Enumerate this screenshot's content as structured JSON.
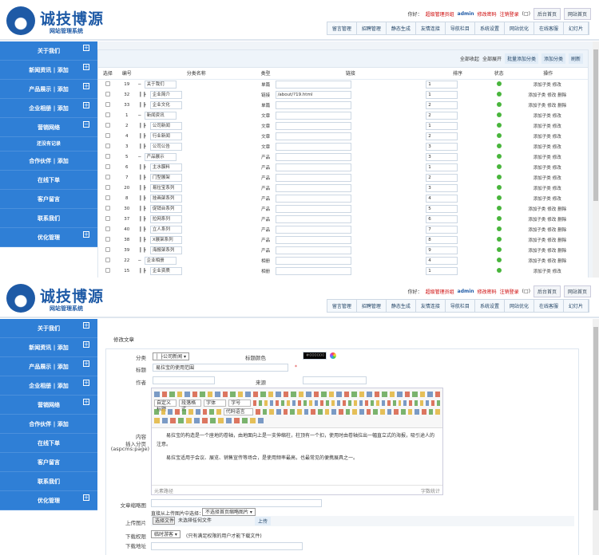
{
  "header": {
    "logo_title": "诚技博源",
    "logo_subtitle": "网站管理系统",
    "greeting": "你好：",
    "role": "超级管理员组",
    "user": "admin",
    "change_password": "修改密码",
    "logout": "注销登录",
    "bracket": "(□)",
    "admin_home": "后台首页",
    "site_home": "网站首页",
    "nav": [
      "留言管理",
      "招聘管理",
      "静态生成",
      "友情连接",
      "导航栏目",
      "系统设置",
      "网站优化",
      "在线客服",
      "幻灯片"
    ]
  },
  "sidebar_top": [
    {
      "label": "关于我们",
      "plus": "+"
    },
    {
      "label": "新闻资讯 |  添加",
      "plus": "+"
    },
    {
      "label": "产品展示 |  添加",
      "plus": "+"
    },
    {
      "label": "企业相册 |  添加",
      "plus": "+"
    },
    {
      "label": "营销网络",
      "plus": "−"
    },
    {
      "label": "还没有记录",
      "sub": true
    },
    {
      "label": "合作伙伴 |  添加"
    },
    {
      "label": "在线下单"
    },
    {
      "label": "客户留言"
    },
    {
      "label": "联系我们"
    },
    {
      "label": "优化管理",
      "plus": "+"
    }
  ],
  "sidebar_bottom": [
    {
      "label": "关于我们",
      "plus": "+"
    },
    {
      "label": "新闻资讯 |  添加",
      "plus": "+"
    },
    {
      "label": "产品展示 |  添加",
      "plus": "+"
    },
    {
      "label": "企业相册 |  添加",
      "plus": "+"
    },
    {
      "label": "营销网络",
      "plus": "+"
    },
    {
      "label": "合作伙伴 |  添加"
    },
    {
      "label": "在线下单"
    },
    {
      "label": "客户留言"
    },
    {
      "label": "联系我们"
    },
    {
      "label": "优化管理",
      "plus": "+"
    }
  ],
  "category_list": {
    "toolbar": {
      "collapse_all": "全部收起",
      "expand_all": "全部展开",
      "batch_add": "批量添加分类",
      "add": "添加分类",
      "refresh": "刷新"
    },
    "columns": [
      "选择",
      "编号",
      "分类名称",
      "类型",
      "链接",
      "排序",
      "状态",
      "操作"
    ],
    "rows": [
      {
        "id": "19",
        "level": 0,
        "name": "关于我们",
        "type": "单篇",
        "link": "",
        "sort": "1",
        "actions": [
          "添加子类",
          "修改"
        ]
      },
      {
        "id": "32",
        "level": 1,
        "name": "企业简介",
        "type": "链接",
        "link": "/about/?19.html",
        "sort": "1",
        "actions": [
          "添加子类",
          "修改",
          "删除"
        ]
      },
      {
        "id": "33",
        "level": 1,
        "name": "企业文化",
        "type": "单篇",
        "link": "",
        "sort": "2",
        "actions": [
          "添加子类",
          "修改",
          "删除"
        ]
      },
      {
        "id": "1",
        "level": 0,
        "name": "新闻资讯",
        "type": "文章",
        "link": "",
        "sort": "2",
        "actions": [
          "添加子类",
          "修改"
        ]
      },
      {
        "id": "2",
        "level": 1,
        "name": "公司新闻",
        "type": "文章",
        "link": "",
        "sort": "1",
        "actions": [
          "添加子类",
          "修改"
        ]
      },
      {
        "id": "4",
        "level": 1,
        "name": "行业新闻",
        "type": "文章",
        "link": "",
        "sort": "2",
        "actions": [
          "添加子类",
          "修改"
        ]
      },
      {
        "id": "3",
        "level": 1,
        "name": "公司公告",
        "type": "文章",
        "link": "",
        "sort": "3",
        "actions": [
          "添加子类",
          "修改"
        ]
      },
      {
        "id": "5",
        "level": 0,
        "name": "产品展示",
        "type": "产品",
        "link": "",
        "sort": "3",
        "actions": [
          "添加子类",
          "修改"
        ]
      },
      {
        "id": "6",
        "level": 1,
        "name": "主水膜料",
        "type": "产品",
        "link": "",
        "sort": "1",
        "actions": [
          "添加子类",
          "修改"
        ]
      },
      {
        "id": "7",
        "level": 1,
        "name": "门型展架",
        "type": "产品",
        "link": "",
        "sort": "2",
        "actions": [
          "添加子类",
          "修改"
        ]
      },
      {
        "id": "20",
        "level": 1,
        "name": "易拉宝系列",
        "type": "产品",
        "link": "",
        "sort": "3",
        "actions": [
          "添加子类",
          "修改"
        ]
      },
      {
        "id": "8",
        "level": 1,
        "name": "挂画架系列",
        "type": "产品",
        "link": "",
        "sort": "4",
        "actions": [
          "添加子类",
          "修改"
        ]
      },
      {
        "id": "30",
        "level": 1,
        "name": "促销台系列",
        "type": "产品",
        "link": "",
        "sort": "5",
        "actions": [
          "添加子类",
          "修改",
          "删除"
        ]
      },
      {
        "id": "37",
        "level": 1,
        "name": "拉网系列",
        "type": "产品",
        "link": "",
        "sort": "6",
        "actions": [
          "添加子类",
          "修改",
          "删除"
        ]
      },
      {
        "id": "40",
        "level": 1,
        "name": "立人系列",
        "type": "产品",
        "link": "",
        "sort": "7",
        "actions": [
          "添加子类",
          "修改",
          "删除"
        ]
      },
      {
        "id": "38",
        "level": 1,
        "name": "X展架系列",
        "type": "产品",
        "link": "",
        "sort": "8",
        "actions": [
          "添加子类",
          "修改",
          "删除"
        ]
      },
      {
        "id": "39",
        "level": 1,
        "name": "海报架系列",
        "type": "产品",
        "link": "",
        "sort": "9",
        "actions": [
          "添加子类",
          "修改",
          "删除"
        ]
      },
      {
        "id": "22",
        "level": 0,
        "name": "企业相册",
        "type": "相册",
        "link": "",
        "sort": "4",
        "actions": [
          "添加子类",
          "修改",
          "删除"
        ]
      },
      {
        "id": "15",
        "level": 1,
        "name": "企业资质",
        "type": "相册",
        "link": "",
        "sort": "1",
        "actions": [
          "添加子类",
          "修改"
        ]
      }
    ],
    "status_color": "#49b53c"
  },
  "edit_article": {
    "title": "修改文章",
    "category_label": "分类",
    "category_value": "│ ├公司新闻 ▾",
    "title_color_label": "标题颜色",
    "title_color_value": "#000000",
    "title_label": "标题",
    "title_value": "易拉宝的使用范围",
    "required_mark": "*",
    "author_label": "作者",
    "author_value": "",
    "source_label": "来源",
    "source_value": "",
    "content_label": "内容",
    "page_break_label": "插入分页",
    "page_break_tag": "(aspcms:page)",
    "editor_selects": [
      "自定义标题",
      "段落格式",
      "字体",
      "字号",
      "代码语言"
    ],
    "content_paragraphs": [
      "易拉宝的构造是一个座地的卷轴，由地面向上是一支伸缩柱，柱顶有一个扣，使用时由卷轴拉出一幅直立式的海报，吸引途人的注意。",
      "易拉宝适用于会议、展览、销售宣传等场合，是使用频率最高，也最常见的便携展具之一。"
    ],
    "element_path": "元素路径",
    "word_count": "字数统计",
    "thumb_label": "文章缩略图",
    "thumb_value": "",
    "choose_from_uploaded": "直接从上传图片中选择：",
    "choose_select": "不选择首页缩略图片 ▾",
    "upload_label": "上传图片",
    "choose_file": "选择文件",
    "no_file": "未选择任何文件",
    "upload_btn": "上传",
    "download_perm_label": "下载权限",
    "download_perm_value": "临时游客 ▾",
    "download_perm_hint": "(只有满足权限的用户才能下载文件)",
    "download_url_label": "下载地址",
    "download_url_value": ""
  }
}
